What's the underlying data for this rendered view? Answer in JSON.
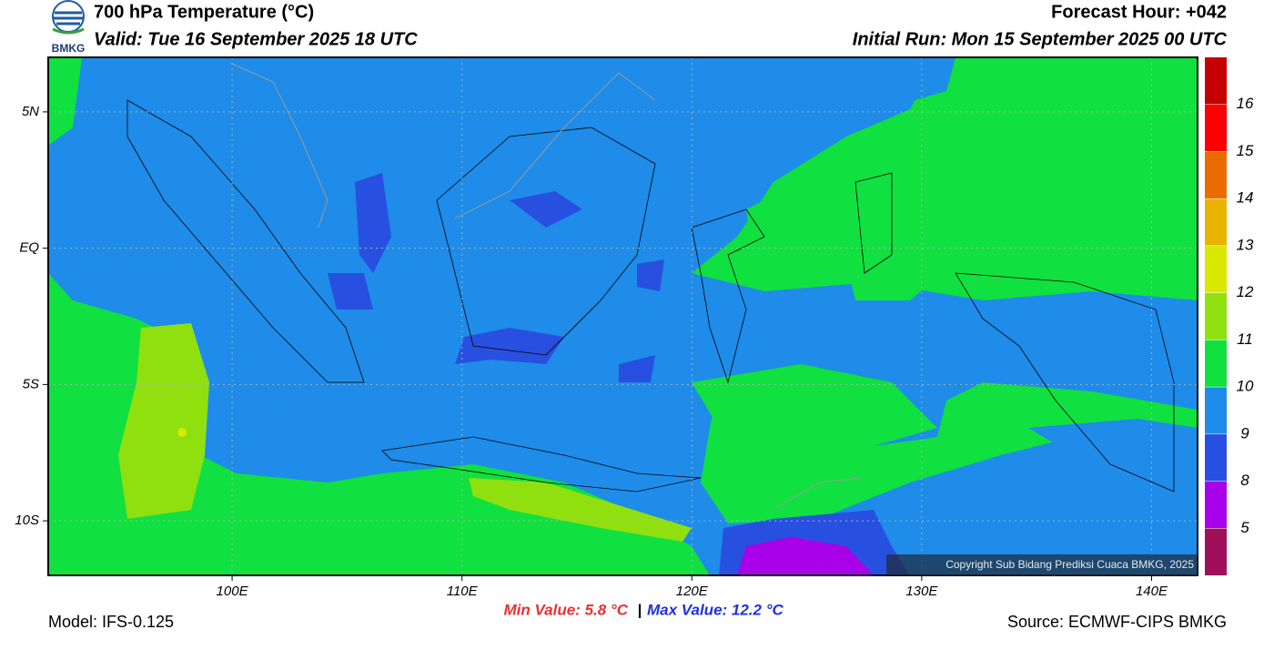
{
  "header": {
    "logo_text": "BMKG",
    "title": "700 hPa Temperature (°C)",
    "valid": "Valid: Tue 16 September 2025 18 UTC",
    "forecast_hour": "Forecast Hour: +042",
    "initial_run": "Initial Run: Mon 15 September 2025 00 UTC"
  },
  "map": {
    "xlim": [
      92,
      142
    ],
    "ylim": [
      -12,
      7
    ],
    "xticks": [
      {
        "value": 100,
        "label": "100E"
      },
      {
        "value": 110,
        "label": "110E"
      },
      {
        "value": 120,
        "label": "120E"
      },
      {
        "value": 130,
        "label": "130E"
      },
      {
        "value": 140,
        "label": "140E"
      }
    ],
    "yticks": [
      {
        "value": 5,
        "label": "5N"
      },
      {
        "value": 0,
        "label": "EQ"
      },
      {
        "value": -5,
        "label": "5S"
      },
      {
        "value": -10,
        "label": "10S"
      }
    ],
    "copyright": "Copyright Sub Bidang Prediksi Cuaca BMKG, 2025"
  },
  "colorbar": {
    "levels": [
      5,
      8,
      9,
      10,
      11,
      12,
      13,
      14,
      15,
      16
    ],
    "colors": [
      "#a0105a",
      "#a800e8",
      "#2850e0",
      "#1e8ce8",
      "#10e040",
      "#90e010",
      "#d8e800",
      "#e8b400",
      "#e86c00",
      "#ff0000",
      "#c40000"
    ]
  },
  "footer": {
    "model": "Model: IFS-0.125",
    "min_value": "Min Value: 5.8 °C",
    "separator": "|",
    "max_value": "Max Value: 12.2 °C",
    "source": "Source: ECMWF-CIPS BMKG"
  }
}
